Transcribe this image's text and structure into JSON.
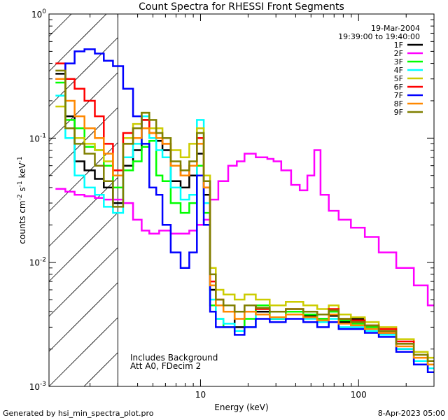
{
  "chart_data": {
    "type": "line",
    "title": "Count Spectra for RHESSI Front Segments",
    "xlabel": "Energy (keV)",
    "ylabel_parts": {
      "base": "counts cm",
      "sup1": "-2",
      "mid": " s",
      "sup2": "-1",
      "unit": " keV",
      "sup3": "-1"
    },
    "xscale": "log",
    "yscale": "log",
    "xlim": [
      1.1,
      300
    ],
    "ylim": [
      0.001,
      1.0
    ],
    "x_ticks": [
      {
        "value": 10,
        "label": "10"
      },
      {
        "value": 100,
        "label": "100"
      }
    ],
    "y_ticks": [
      {
        "value": 1.0,
        "label": "10",
        "exp": "0"
      },
      {
        "value": 0.1,
        "label": "10",
        "exp": "-1"
      },
      {
        "value": 0.01,
        "label": "10",
        "exp": "-2"
      },
      {
        "value": 0.001,
        "label": "10",
        "exp": "-3"
      }
    ],
    "shaded_region_xmax": 3.0,
    "legend_position": "top-right",
    "date": "19-Mar-2004",
    "time_range": "19:39:00 to 19:40:00",
    "annotations": [
      "Includes Background",
      "Att A0, FDecim 2"
    ],
    "series": [
      {
        "name": "1F",
        "color": "#000000",
        "x": [
          1.3,
          1.5,
          1.7,
          2.0,
          2.3,
          2.6,
          3.0,
          3.5,
          4.0,
          4.5,
          5.0,
          5.5,
          6,
          7,
          8,
          9,
          10,
          11,
          12,
          13,
          15,
          18,
          20,
          25,
          30,
          40,
          50,
          60,
          70,
          80,
          100,
          120,
          150,
          200,
          250,
          300
        ],
        "y": [
          0.33,
          0.15,
          0.065,
          0.055,
          0.047,
          0.04,
          0.03,
          0.06,
          0.08,
          0.14,
          0.12,
          0.095,
          0.08,
          0.045,
          0.04,
          0.05,
          0.075,
          0.035,
          0.006,
          0.0045,
          0.0045,
          0.003,
          0.0045,
          0.004,
          0.0035,
          0.004,
          0.0037,
          0.0035,
          0.0037,
          0.0033,
          0.0035,
          0.003,
          0.0027,
          0.002,
          0.0016,
          0.0015
        ]
      },
      {
        "name": "2F",
        "color": "#ff00ff",
        "x": [
          1.3,
          1.5,
          1.7,
          2.0,
          2.3,
          2.6,
          3.0,
          3.5,
          4.0,
          4.5,
          5.0,
          6,
          7,
          8,
          9,
          10,
          11,
          12,
          14,
          16,
          18,
          20,
          25,
          28,
          30,
          35,
          40,
          45,
          50,
          55,
          60,
          70,
          80,
          100,
          120,
          150,
          200,
          250,
          300
        ],
        "y": [
          0.039,
          0.037,
          0.035,
          0.034,
          0.033,
          0.032,
          0.032,
          0.03,
          0.022,
          0.018,
          0.017,
          0.018,
          0.017,
          0.017,
          0.018,
          0.02,
          0.022,
          0.032,
          0.045,
          0.06,
          0.065,
          0.075,
          0.07,
          0.068,
          0.065,
          0.055,
          0.042,
          0.038,
          0.05,
          0.08,
          0.035,
          0.026,
          0.022,
          0.019,
          0.016,
          0.012,
          0.009,
          0.0065,
          0.0045
        ]
      },
      {
        "name": "3F",
        "color": "#00ff00",
        "x": [
          1.3,
          1.5,
          1.7,
          2.0,
          2.3,
          2.6,
          3.0,
          3.5,
          4.0,
          4.5,
          5.0,
          5.5,
          6,
          7,
          8,
          9,
          10,
          11,
          12,
          13,
          15,
          18,
          20,
          25,
          30,
          40,
          50,
          60,
          70,
          80,
          100,
          120,
          150,
          200,
          250,
          300
        ],
        "y": [
          0.28,
          0.14,
          0.12,
          0.085,
          0.08,
          0.06,
          0.04,
          0.055,
          0.065,
          0.085,
          0.095,
          0.05,
          0.045,
          0.03,
          0.025,
          0.03,
          0.06,
          0.025,
          0.0045,
          0.0035,
          0.003,
          0.0028,
          0.0035,
          0.0045,
          0.0035,
          0.004,
          0.0038,
          0.0035,
          0.004,
          0.0034,
          0.0032,
          0.003,
          0.0028,
          0.0022,
          0.0018,
          0.0016
        ]
      },
      {
        "name": "4F",
        "color": "#00ffff",
        "x": [
          1.3,
          1.5,
          1.7,
          2.0,
          2.3,
          2.6,
          3.0,
          3.5,
          4.0,
          4.5,
          5.0,
          5.5,
          6,
          7,
          8,
          9,
          10,
          11,
          12,
          13,
          15,
          18,
          20,
          25,
          30,
          40,
          50,
          60,
          70,
          80,
          100,
          120,
          150,
          200,
          250,
          300
        ],
        "y": [
          0.22,
          0.1,
          0.05,
          0.04,
          0.035,
          0.028,
          0.025,
          0.07,
          0.09,
          0.15,
          0.1,
          0.08,
          0.07,
          0.04,
          0.032,
          0.035,
          0.14,
          0.03,
          0.005,
          0.0035,
          0.0032,
          0.0028,
          0.003,
          0.0038,
          0.0035,
          0.0038,
          0.0035,
          0.0033,
          0.0035,
          0.003,
          0.003,
          0.0028,
          0.0026,
          0.002,
          0.0016,
          0.0014
        ]
      },
      {
        "name": "5F",
        "color": "#cccc00",
        "x": [
          1.3,
          1.5,
          1.7,
          2.0,
          2.3,
          2.6,
          3.0,
          3.5,
          4.0,
          4.5,
          5.0,
          5.5,
          6,
          7,
          8,
          9,
          10,
          11,
          12,
          13,
          15,
          18,
          20,
          25,
          30,
          40,
          50,
          60,
          70,
          80,
          100,
          120,
          150,
          200,
          250,
          300
        ],
        "y": [
          0.18,
          0.12,
          0.1,
          0.09,
          0.08,
          0.065,
          0.05,
          0.1,
          0.13,
          0.16,
          0.12,
          0.12,
          0.1,
          0.08,
          0.07,
          0.09,
          0.12,
          0.05,
          0.009,
          0.006,
          0.0055,
          0.005,
          0.0055,
          0.005,
          0.0045,
          0.0048,
          0.0045,
          0.0042,
          0.0045,
          0.0038,
          0.0036,
          0.0033,
          0.003,
          0.0024,
          0.0019,
          0.0017
        ]
      },
      {
        "name": "6F",
        "color": "#ff0000",
        "x": [
          1.3,
          1.5,
          1.7,
          2.0,
          2.3,
          2.6,
          3.0,
          3.5,
          4.0,
          4.5,
          5.0,
          5.5,
          6,
          7,
          8,
          9,
          10,
          11,
          12,
          13,
          15,
          18,
          20,
          25,
          30,
          40,
          50,
          60,
          70,
          80,
          100,
          120,
          150,
          200,
          250,
          300
        ],
        "y": [
          0.4,
          0.3,
          0.25,
          0.2,
          0.15,
          0.09,
          0.055,
          0.11,
          0.12,
          0.14,
          0.11,
          0.1,
          0.09,
          0.06,
          0.05,
          0.06,
          0.1,
          0.04,
          0.007,
          0.005,
          0.0045,
          0.004,
          0.0045,
          0.0042,
          0.004,
          0.0042,
          0.004,
          0.0038,
          0.0042,
          0.0035,
          0.0034,
          0.0031,
          0.0029,
          0.0023,
          0.0018,
          0.0016
        ]
      },
      {
        "name": "7F",
        "color": "#0000ff",
        "x": [
          1.3,
          1.5,
          1.7,
          2.0,
          2.3,
          2.6,
          3.0,
          3.5,
          4.0,
          4.5,
          5.0,
          5.5,
          6,
          7,
          8,
          9,
          10,
          11,
          12,
          13,
          15,
          18,
          20,
          25,
          30,
          40,
          50,
          60,
          70,
          80,
          100,
          120,
          150,
          200,
          250,
          300
        ],
        "y": [
          0.3,
          0.4,
          0.5,
          0.52,
          0.48,
          0.42,
          0.38,
          0.25,
          0.15,
          0.09,
          0.04,
          0.035,
          0.02,
          0.012,
          0.009,
          0.012,
          0.05,
          0.02,
          0.004,
          0.003,
          0.003,
          0.0026,
          0.003,
          0.0035,
          0.0033,
          0.0035,
          0.0033,
          0.003,
          0.0033,
          0.0029,
          0.0029,
          0.0027,
          0.0025,
          0.0019,
          0.0015,
          0.0013
        ]
      },
      {
        "name": "8F",
        "color": "#ff8800",
        "x": [
          1.3,
          1.5,
          1.7,
          2.0,
          2.3,
          2.6,
          3.0,
          3.5,
          4.0,
          4.5,
          5.0,
          5.5,
          6,
          7,
          8,
          9,
          10,
          11,
          12,
          13,
          15,
          18,
          20,
          25,
          30,
          40,
          50,
          60,
          70,
          80,
          100,
          120,
          150,
          200,
          250,
          300
        ],
        "y": [
          0.3,
          0.2,
          0.15,
          0.12,
          0.1,
          0.075,
          0.05,
          0.09,
          0.1,
          0.12,
          0.11,
          0.1,
          0.09,
          0.06,
          0.05,
          0.06,
          0.09,
          0.04,
          0.0065,
          0.0045,
          0.004,
          0.0035,
          0.004,
          0.0038,
          0.0036,
          0.0038,
          0.0036,
          0.0034,
          0.0038,
          0.0032,
          0.0031,
          0.0029,
          0.0027,
          0.0021,
          0.0017,
          0.0015
        ]
      },
      {
        "name": "9F",
        "color": "#808000",
        "x": [
          1.3,
          1.5,
          1.7,
          2.0,
          2.3,
          2.6,
          3.0,
          3.5,
          4.0,
          4.5,
          5.0,
          5.5,
          6,
          7,
          8,
          9,
          10,
          11,
          12,
          13,
          15,
          18,
          20,
          25,
          30,
          40,
          50,
          60,
          70,
          80,
          100,
          120,
          150,
          200,
          250,
          300
        ],
        "y": [
          0.35,
          0.12,
          0.09,
          0.075,
          0.06,
          0.045,
          0.028,
          0.09,
          0.12,
          0.16,
          0.14,
          0.11,
          0.1,
          0.065,
          0.055,
          0.065,
          0.11,
          0.045,
          0.008,
          0.005,
          0.0045,
          0.004,
          0.0045,
          0.0043,
          0.004,
          0.0042,
          0.004,
          0.0038,
          0.0041,
          0.0035,
          0.0033,
          0.0031,
          0.0028,
          0.0022,
          0.0018,
          0.0016
        ]
      }
    ]
  },
  "footer": {
    "generated_by": "Generated by hsi_min_spectra_plot.pro",
    "timestamp": "8-Apr-2023 05:00"
  }
}
